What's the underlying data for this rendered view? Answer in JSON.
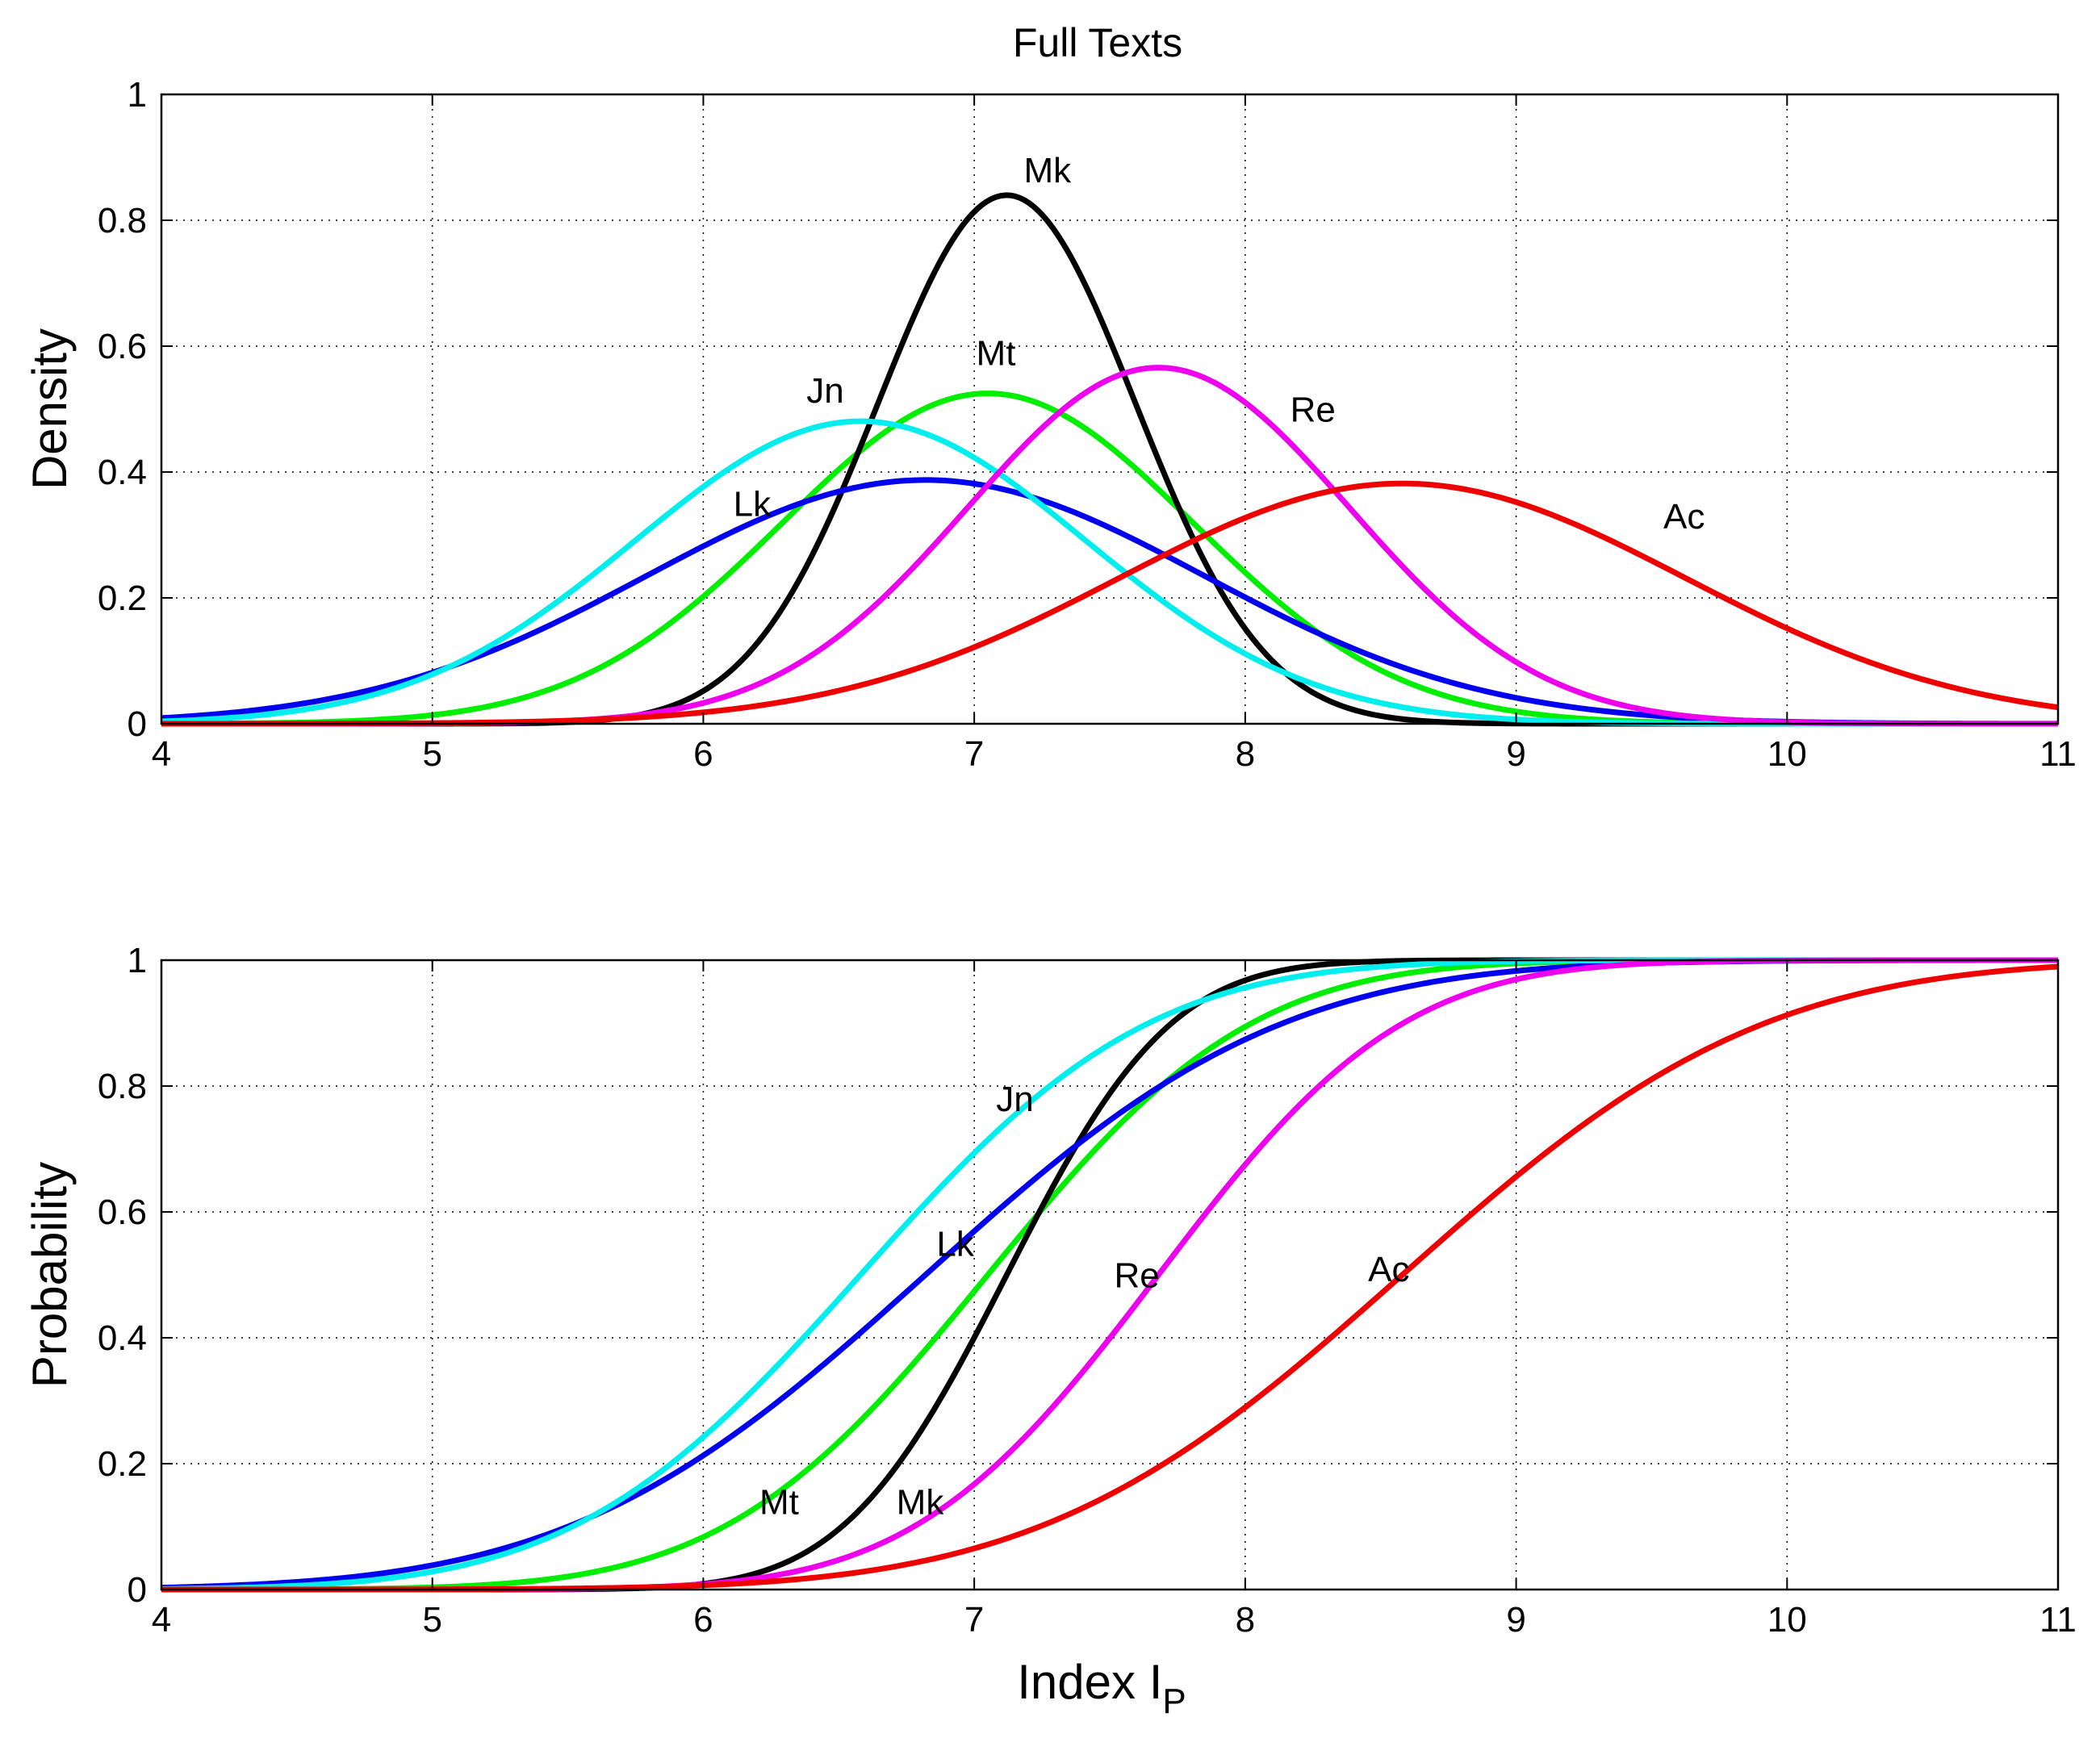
{
  "figure": {
    "title": "Full Texts"
  },
  "chart_data": [
    {
      "type": "line",
      "title": "Full Texts",
      "xlabel": "Index I",
      "xlabel_sub": "P",
      "ylabel": "Density",
      "xlim": [
        4,
        11
      ],
      "ylim": [
        0,
        1
      ],
      "grid": true,
      "xticks": [
        4,
        5,
        6,
        7,
        8,
        9,
        10,
        11
      ],
      "xtick_labels": [
        "4",
        "5",
        "6",
        "7",
        "8",
        "9",
        "10",
        "11"
      ],
      "yticks": [
        0,
        0.2,
        0.4,
        0.6,
        0.8,
        1
      ],
      "ytick_labels": [
        "0",
        "0.2",
        "0.4",
        "0.6",
        "0.8",
        "1"
      ],
      "function": "normal_pdf",
      "series": [
        {
          "name": "Mt",
          "mean": 7.05,
          "sd": 0.76,
          "scale": 1.0,
          "color": "#00ee00"
        },
        {
          "name": "Mk",
          "mean": 7.12,
          "sd": 0.475,
          "scale": 1.0,
          "color": "#000000"
        },
        {
          "name": "Lk",
          "mean": 6.82,
          "sd": 1.03,
          "scale": 1.0,
          "color": "#0000ee"
        },
        {
          "name": "Jn",
          "mean": 6.58,
          "sd": 0.83,
          "scale": 1.0,
          "color": "#00eeee"
        },
        {
          "name": "Re",
          "mean": 7.68,
          "sd": 0.705,
          "scale": 1.0,
          "color": "#ee00ee"
        },
        {
          "name": "Ac",
          "mean": 8.58,
          "sd": 1.045,
          "scale": 1.0,
          "color": "#ee0000"
        }
      ],
      "annotations": [
        {
          "text": "Mk",
          "x": 7.27,
          "y": 0.86
        },
        {
          "text": "Mt",
          "x": 7.08,
          "y": 0.57
        },
        {
          "text": "Jn",
          "x": 6.45,
          "y": 0.51
        },
        {
          "text": "Re",
          "x": 8.25,
          "y": 0.48
        },
        {
          "text": "Lk",
          "x": 6.18,
          "y": 0.33
        },
        {
          "text": "Ac",
          "x": 9.62,
          "y": 0.31
        }
      ]
    },
    {
      "type": "line",
      "title": "",
      "xlabel": "Index I",
      "xlabel_sub": "P",
      "ylabel": "Probability",
      "xlim": [
        4,
        11
      ],
      "ylim": [
        0,
        1
      ],
      "grid": true,
      "xticks": [
        4,
        5,
        6,
        7,
        8,
        9,
        10,
        11
      ],
      "xtick_labels": [
        "4",
        "5",
        "6",
        "7",
        "8",
        "9",
        "10",
        "11"
      ],
      "yticks": [
        0,
        0.2,
        0.4,
        0.6,
        0.8,
        1
      ],
      "ytick_labels": [
        "0",
        "0.2",
        "0.4",
        "0.6",
        "0.8",
        "1"
      ],
      "function": "normal_cdf",
      "series": [
        {
          "name": "Mt",
          "mean": 7.05,
          "sd": 0.76,
          "color": "#00ee00"
        },
        {
          "name": "Mk",
          "mean": 7.12,
          "sd": 0.475,
          "color": "#000000"
        },
        {
          "name": "Lk",
          "mean": 6.82,
          "sd": 1.03,
          "color": "#0000ee"
        },
        {
          "name": "Jn",
          "mean": 6.58,
          "sd": 0.83,
          "color": "#00eeee"
        },
        {
          "name": "Re",
          "mean": 7.68,
          "sd": 0.705,
          "color": "#ee00ee"
        },
        {
          "name": "Ac",
          "mean": 8.58,
          "sd": 1.045,
          "color": "#ee0000"
        }
      ],
      "annotations": [
        {
          "text": "Jn",
          "x": 7.15,
          "y": 0.76
        },
        {
          "text": "Lk",
          "x": 6.93,
          "y": 0.53
        },
        {
          "text": "Re",
          "x": 7.6,
          "y": 0.48
        },
        {
          "text": "Ac",
          "x": 8.53,
          "y": 0.49
        },
        {
          "text": "Mt",
          "x": 6.28,
          "y": 0.12
        },
        {
          "text": "Mk",
          "x": 6.8,
          "y": 0.12
        }
      ]
    }
  ]
}
